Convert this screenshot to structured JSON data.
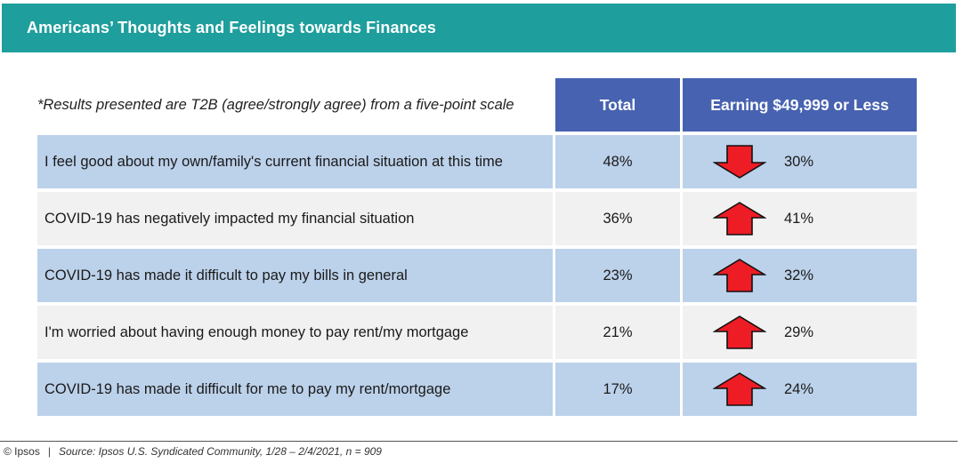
{
  "title": "Americans’ Thoughts and Feelings towards Finances",
  "note": "*Results presented are T2B (agree/strongly agree) from a five-point scale",
  "chart_data": {
    "type": "table",
    "columns": [
      "Total",
      "Earning $49,999 or Less"
    ],
    "rows": [
      {
        "statement": "I feel good about my own/family's current financial situation at this time",
        "total": "48%",
        "earning": "30%",
        "direction": "down"
      },
      {
        "statement": "COVID-19 has negatively impacted my financial situation",
        "total": "36%",
        "earning": "41%",
        "direction": "up"
      },
      {
        "statement": "COVID-19 has made it difficult to pay my bills in general",
        "total": "23%",
        "earning": "32%",
        "direction": "up"
      },
      {
        "statement": "I'm worried about having enough money to pay rent/my mortgage",
        "total": "21%",
        "earning": "29%",
        "direction": "up"
      },
      {
        "statement": "COVID-19 has made it difficult for me to pay my rent/mortgage",
        "total": "17%",
        "earning": "24%",
        "direction": "up"
      }
    ]
  },
  "footer": {
    "copyright": "© Ipsos",
    "separator": "|",
    "source": "Source: Ipsos U.S. Syndicated Community, 1/28 – 2/4/2021, n = 909"
  },
  "colors": {
    "title_bar": "#1e9e9c",
    "header": "#4762b0",
    "row_blue": "#bcd1ea",
    "row_gray": "#f1f1f1",
    "arrow": "#ee1c25"
  }
}
